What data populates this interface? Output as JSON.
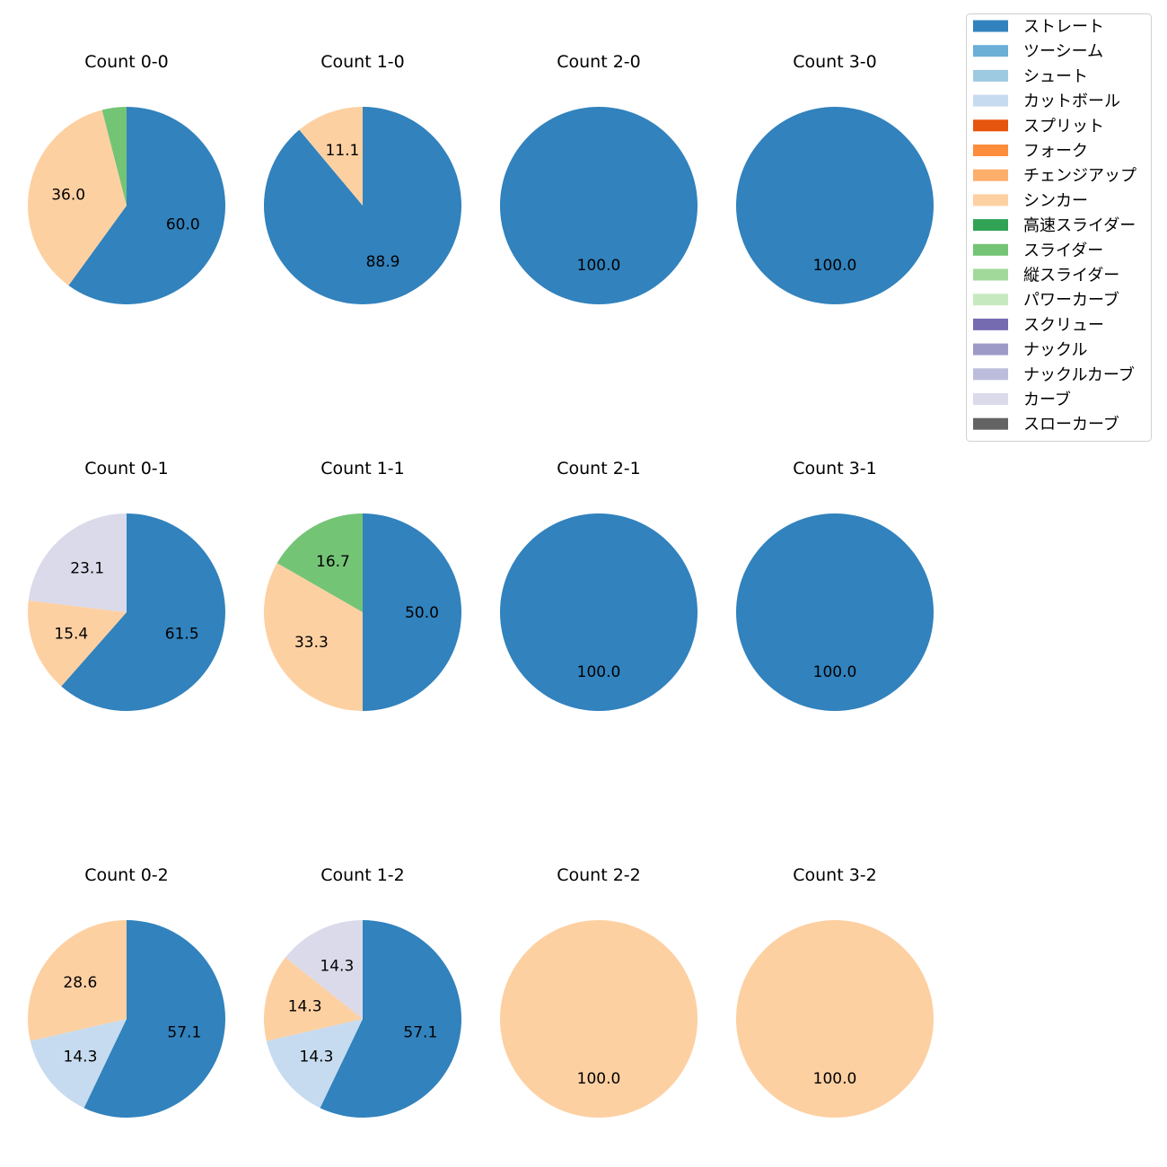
{
  "chart_data": {
    "type": "pie",
    "legend": {
      "placement": "top-right",
      "entries": [
        {
          "name": "ストレート",
          "color": "#3182bd"
        },
        {
          "name": "ツーシーム",
          "color": "#6baed6"
        },
        {
          "name": "シュート",
          "color": "#9ecae1"
        },
        {
          "name": "カットボール",
          "color": "#c6dbef"
        },
        {
          "name": "スプリット",
          "color": "#e6550d"
        },
        {
          "name": "フォーク",
          "color": "#fd8d3c"
        },
        {
          "name": "チェンジアップ",
          "color": "#fdae6b"
        },
        {
          "name": "シンカー",
          "color": "#fdd0a2"
        },
        {
          "name": "高速スライダー",
          "color": "#31a354"
        },
        {
          "name": "スライダー",
          "color": "#74c476"
        },
        {
          "name": "縦スライダー",
          "color": "#a1d99b"
        },
        {
          "name": "パワーカーブ",
          "color": "#c7e9c0"
        },
        {
          "name": "スクリュー",
          "color": "#756bb1"
        },
        {
          "name": "ナックル",
          "color": "#9e9ac8"
        },
        {
          "name": "ナックルカーブ",
          "color": "#bcbddc"
        },
        {
          "name": "カーブ",
          "color": "#dadaeb"
        },
        {
          "name": "スローカーブ",
          "color": "#636363"
        }
      ]
    },
    "pies": [
      {
        "title": "Count 0-0",
        "slices": [
          {
            "name": "ストレート",
            "value": 60.0,
            "label": "60.0"
          },
          {
            "name": "シンカー",
            "value": 36.0,
            "label": "36.0"
          },
          {
            "name": "スライダー",
            "value": 4.0,
            "label": null
          }
        ]
      },
      {
        "title": "Count 1-0",
        "slices": [
          {
            "name": "ストレート",
            "value": 88.9,
            "label": "88.9"
          },
          {
            "name": "シンカー",
            "value": 11.1,
            "label": "11.1"
          }
        ]
      },
      {
        "title": "Count 2-0",
        "slices": [
          {
            "name": "ストレート",
            "value": 100.0,
            "label": "100.0"
          }
        ]
      },
      {
        "title": "Count 3-0",
        "slices": [
          {
            "name": "ストレート",
            "value": 100.0,
            "label": "100.0"
          }
        ]
      },
      {
        "title": "Count 0-1",
        "slices": [
          {
            "name": "ストレート",
            "value": 61.5,
            "label": "61.5"
          },
          {
            "name": "シンカー",
            "value": 15.4,
            "label": "15.4"
          },
          {
            "name": "カーブ",
            "value": 23.1,
            "label": "23.1"
          }
        ]
      },
      {
        "title": "Count 1-1",
        "slices": [
          {
            "name": "ストレート",
            "value": 50.0,
            "label": "50.0"
          },
          {
            "name": "シンカー",
            "value": 33.3,
            "label": "33.3"
          },
          {
            "name": "スライダー",
            "value": 16.7,
            "label": "16.7"
          }
        ]
      },
      {
        "title": "Count 2-1",
        "slices": [
          {
            "name": "ストレート",
            "value": 100.0,
            "label": "100.0"
          }
        ]
      },
      {
        "title": "Count 3-1",
        "slices": [
          {
            "name": "ストレート",
            "value": 100.0,
            "label": "100.0"
          }
        ]
      },
      {
        "title": "Count 0-2",
        "slices": [
          {
            "name": "ストレート",
            "value": 57.1,
            "label": "57.1"
          },
          {
            "name": "カットボール",
            "value": 14.3,
            "label": "14.3"
          },
          {
            "name": "シンカー",
            "value": 28.6,
            "label": "28.6"
          }
        ]
      },
      {
        "title": "Count 1-2",
        "slices": [
          {
            "name": "ストレート",
            "value": 57.1,
            "label": "57.1"
          },
          {
            "name": "カットボール",
            "value": 14.3,
            "label": "14.3"
          },
          {
            "name": "シンカー",
            "value": 14.3,
            "label": "14.3"
          },
          {
            "name": "カーブ",
            "value": 14.3,
            "label": "14.3"
          }
        ]
      },
      {
        "title": "Count 2-2",
        "slices": [
          {
            "name": "シンカー",
            "value": 100.0,
            "label": "100.0"
          }
        ]
      },
      {
        "title": "Count 3-2",
        "slices": [
          {
            "name": "シンカー",
            "value": 100.0,
            "label": "100.0"
          }
        ]
      }
    ]
  }
}
